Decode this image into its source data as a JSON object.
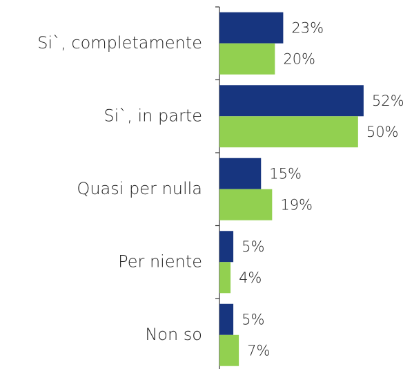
{
  "chart_data": {
    "type": "bar",
    "orientation": "horizontal",
    "categories": [
      "Si`, completamente",
      "Si`, in parte",
      "Quasi per nulla",
      "Per niente",
      "Non so"
    ],
    "series": [
      {
        "color": "#17357f",
        "values": [
          23,
          52,
          15,
          5,
          5
        ],
        "value_labels": [
          "23%",
          "52%",
          "15%",
          "5%",
          "5%"
        ]
      },
      {
        "color": "#92d050",
        "values": [
          20,
          50,
          19,
          4,
          7
        ],
        "value_labels": [
          "20%",
          "50%",
          "19%",
          "4%",
          "7%"
        ]
      }
    ],
    "xlim": [
      0,
      60
    ]
  }
}
